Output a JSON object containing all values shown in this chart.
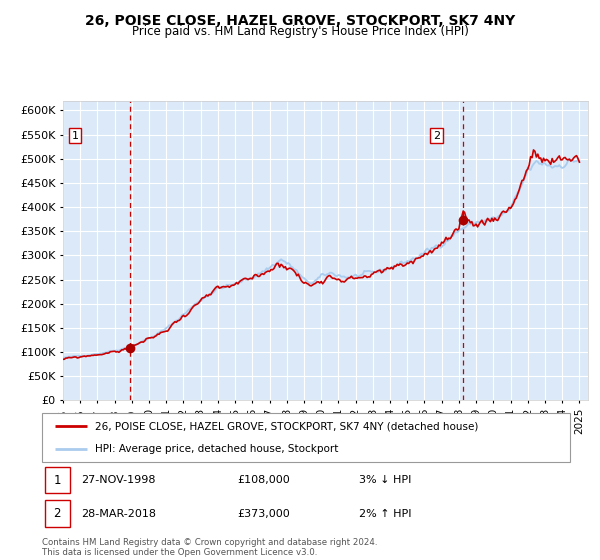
{
  "title": "26, POISE CLOSE, HAZEL GROVE, STOCKPORT, SK7 4NY",
  "subtitle": "Price paid vs. HM Land Registry's House Price Index (HPI)",
  "xlim": [
    1995.0,
    2025.5
  ],
  "ylim": [
    0,
    620000
  ],
  "yticks": [
    0,
    50000,
    100000,
    150000,
    200000,
    250000,
    300000,
    350000,
    400000,
    450000,
    500000,
    550000,
    600000
  ],
  "xticks": [
    1995,
    1996,
    1997,
    1998,
    1999,
    2000,
    2001,
    2002,
    2003,
    2004,
    2005,
    2006,
    2007,
    2008,
    2009,
    2010,
    2011,
    2012,
    2013,
    2014,
    2015,
    2016,
    2017,
    2018,
    2019,
    2020,
    2021,
    2022,
    2023,
    2024,
    2025
  ],
  "background_color": "#ffffff",
  "plot_background_color": "#dce9f8",
  "grid_color": "#ffffff",
  "sale1_date": 1998.91,
  "sale1_price": 108000,
  "sale2_date": 2018.24,
  "sale2_price": 373000,
  "sale_marker_color": "#aa0000",
  "vline_color": "#cc0000",
  "hpi_line_color": "#aaccee",
  "price_line_color": "#cc0000",
  "legend_items": [
    "26, POISE CLOSE, HAZEL GROVE, STOCKPORT, SK7 4NY (detached house)",
    "HPI: Average price, detached house, Stockport"
  ],
  "annotation1_date": "27-NOV-1998",
  "annotation1_price": "£108,000",
  "annotation1_hpi": "3% ↓ HPI",
  "annotation2_date": "28-MAR-2018",
  "annotation2_price": "£373,000",
  "annotation2_hpi": "2% ↑ HPI",
  "footer": "Contains HM Land Registry data © Crown copyright and database right 2024.\nThis data is licensed under the Open Government Licence v3.0.",
  "key_points_hpi": [
    [
      1995.0,
      88000
    ],
    [
      1996.0,
      92000
    ],
    [
      1997.0,
      97000
    ],
    [
      1998.0,
      103000
    ],
    [
      1999.0,
      112000
    ],
    [
      2000.0,
      128000
    ],
    [
      2001.0,
      148000
    ],
    [
      2002.0,
      178000
    ],
    [
      2003.0,
      208000
    ],
    [
      2004.0,
      232000
    ],
    [
      2005.0,
      240000
    ],
    [
      2006.0,
      255000
    ],
    [
      2007.0,
      275000
    ],
    [
      2007.7,
      292000
    ],
    [
      2008.5,
      270000
    ],
    [
      2009.0,
      248000
    ],
    [
      2009.5,
      243000
    ],
    [
      2010.0,
      255000
    ],
    [
      2010.5,
      263000
    ],
    [
      2011.0,
      260000
    ],
    [
      2011.5,
      255000
    ],
    [
      2012.0,
      257000
    ],
    [
      2012.5,
      260000
    ],
    [
      2013.0,
      263000
    ],
    [
      2013.5,
      268000
    ],
    [
      2014.0,
      275000
    ],
    [
      2014.5,
      282000
    ],
    [
      2015.0,
      288000
    ],
    [
      2015.5,
      295000
    ],
    [
      2016.0,
      305000
    ],
    [
      2016.5,
      315000
    ],
    [
      2017.0,
      325000
    ],
    [
      2017.5,
      338000
    ],
    [
      2018.0,
      352000
    ],
    [
      2018.5,
      362000
    ],
    [
      2019.0,
      368000
    ],
    [
      2019.5,
      372000
    ],
    [
      2020.0,
      375000
    ],
    [
      2020.5,
      382000
    ],
    [
      2021.0,
      395000
    ],
    [
      2021.5,
      430000
    ],
    [
      2022.0,
      475000
    ],
    [
      2022.5,
      490000
    ],
    [
      2023.0,
      490000
    ],
    [
      2023.5,
      485000
    ],
    [
      2024.0,
      490000
    ],
    [
      2024.5,
      495000
    ],
    [
      2025.0,
      498000
    ]
  ],
  "key_points_price": [
    [
      1995.0,
      85000
    ],
    [
      1996.0,
      90000
    ],
    [
      1997.0,
      95000
    ],
    [
      1998.0,
      100000
    ],
    [
      1998.91,
      108000
    ],
    [
      1999.0,
      113000
    ],
    [
      2000.0,
      126000
    ],
    [
      2001.0,
      145000
    ],
    [
      2002.0,
      175000
    ],
    [
      2003.0,
      205000
    ],
    [
      2004.0,
      228000
    ],
    [
      2005.0,
      238000
    ],
    [
      2006.0,
      252000
    ],
    [
      2007.0,
      272000
    ],
    [
      2007.7,
      285000
    ],
    [
      2008.5,
      265000
    ],
    [
      2009.0,
      242000
    ],
    [
      2009.5,
      238000
    ],
    [
      2010.0,
      252000
    ],
    [
      2010.5,
      258000
    ],
    [
      2011.0,
      255000
    ],
    [
      2011.5,
      250000
    ],
    [
      2012.0,
      253000
    ],
    [
      2012.5,
      257000
    ],
    [
      2013.0,
      260000
    ],
    [
      2013.5,
      265000
    ],
    [
      2014.0,
      272000
    ],
    [
      2014.5,
      278000
    ],
    [
      2015.0,
      285000
    ],
    [
      2015.5,
      292000
    ],
    [
      2016.0,
      302000
    ],
    [
      2016.5,
      312000
    ],
    [
      2017.0,
      322000
    ],
    [
      2017.5,
      335000
    ],
    [
      2018.0,
      348000
    ],
    [
      2018.24,
      373000
    ],
    [
      2018.5,
      368000
    ],
    [
      2019.0,
      365000
    ],
    [
      2019.5,
      370000
    ],
    [
      2020.0,
      378000
    ],
    [
      2020.5,
      388000
    ],
    [
      2021.0,
      400000
    ],
    [
      2021.5,
      438000
    ],
    [
      2022.0,
      482000
    ],
    [
      2022.3,
      515000
    ],
    [
      2022.5,
      498000
    ],
    [
      2023.0,
      495000
    ],
    [
      2023.5,
      488000
    ],
    [
      2024.0,
      495000
    ],
    [
      2024.5,
      502000
    ],
    [
      2025.0,
      502000
    ]
  ]
}
